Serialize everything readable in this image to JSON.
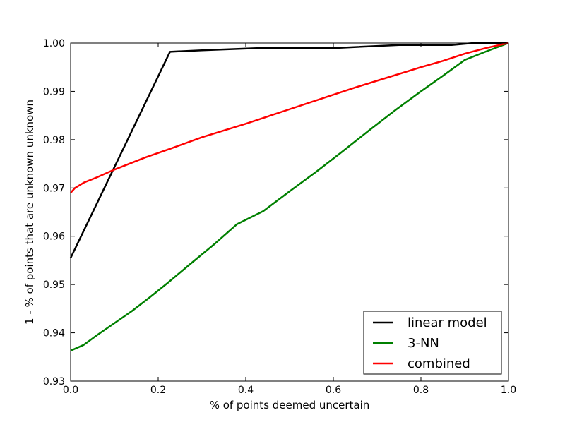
{
  "chart_data": {
    "type": "line",
    "title": "",
    "xlabel": "% of points deemed uncertain",
    "ylabel": "1 - % of points that are unknown unknown",
    "xlim": [
      0.0,
      1.0
    ],
    "ylim": [
      0.93,
      1.0
    ],
    "xticks": [
      "0.0",
      "0.2",
      "0.4",
      "0.6",
      "0.8",
      "1.0"
    ],
    "yticks": [
      "0.93",
      "0.94",
      "0.95",
      "0.96",
      "0.97",
      "0.98",
      "0.99",
      "1.00"
    ],
    "grid": false,
    "legend_position": "lower right",
    "series": [
      {
        "name": "linear model",
        "color": "#000000",
        "x": [
          0.0,
          0.227,
          0.3,
          0.44,
          0.61,
          0.75,
          0.87,
          0.92,
          1.0
        ],
        "y": [
          0.9555,
          0.9982,
          0.9985,
          0.999,
          0.999,
          0.9996,
          0.9996,
          1.0,
          1.0
        ]
      },
      {
        "name": "3-NN",
        "color": "#008000",
        "x": [
          0.0,
          0.01,
          0.03,
          0.06,
          0.1,
          0.14,
          0.18,
          0.22,
          0.27,
          0.33,
          0.38,
          0.44,
          0.5,
          0.56,
          0.62,
          0.68,
          0.74,
          0.8,
          0.85,
          0.9,
          0.95,
          1.0
        ],
        "y": [
          0.9363,
          0.9367,
          0.9375,
          0.9395,
          0.942,
          0.9445,
          0.9473,
          0.9502,
          0.954,
          0.9585,
          0.9625,
          0.9652,
          0.9693,
          0.9733,
          0.9775,
          0.9818,
          0.986,
          0.99,
          0.9932,
          0.9965,
          0.9983,
          1.0
        ]
      },
      {
        "name": "combined",
        "color": "#ff0000",
        "x": [
          0.0,
          0.01,
          0.03,
          0.06,
          0.1,
          0.17,
          0.23,
          0.3,
          0.4,
          0.5,
          0.6,
          0.65,
          0.7,
          0.8,
          0.85,
          0.9,
          0.95,
          1.0
        ],
        "y": [
          0.969,
          0.97,
          0.9711,
          0.9722,
          0.9738,
          0.9763,
          0.9782,
          0.9805,
          0.9833,
          0.9863,
          0.9893,
          0.9908,
          0.9922,
          0.995,
          0.9963,
          0.9978,
          0.999,
          1.0
        ]
      }
    ]
  }
}
